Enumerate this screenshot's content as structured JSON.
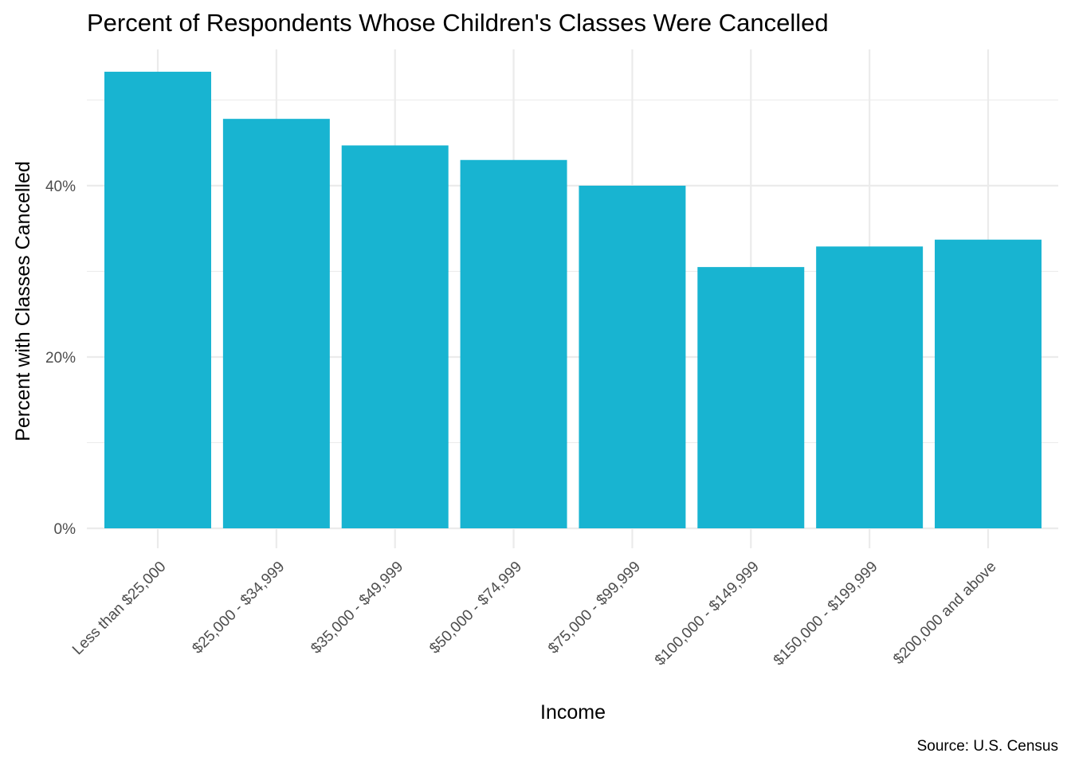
{
  "chart_data": {
    "type": "bar",
    "title": "Percent of Respondents Whose Children's Classes Were Cancelled",
    "xlabel": "Income",
    "ylabel": "Percent with Classes Cancelled",
    "caption": "Source: U.S. Census",
    "categories": [
      "Less than $25,000",
      "$25,000 - $34,999",
      "$35,000 - $49,999",
      "$50,000 - $74,999",
      "$75,000 - $99,999",
      "$100,000 - $149,999",
      "$150,000 - $199,999",
      "$200,000 and above"
    ],
    "values": [
      53.3,
      47.8,
      44.7,
      43.0,
      40.0,
      30.5,
      32.9,
      33.7
    ],
    "value_unit": "percent",
    "ylim": [
      0,
      56
    ],
    "y_ticks": [
      0,
      20,
      40
    ],
    "y_tick_labels": [
      "0%",
      "20%",
      "40%"
    ],
    "y_minor_ticks": [
      10,
      30,
      50
    ],
    "grid": true,
    "legend": "none",
    "bar_color": "#18b4d1",
    "grid_color": "#ebebeb"
  }
}
